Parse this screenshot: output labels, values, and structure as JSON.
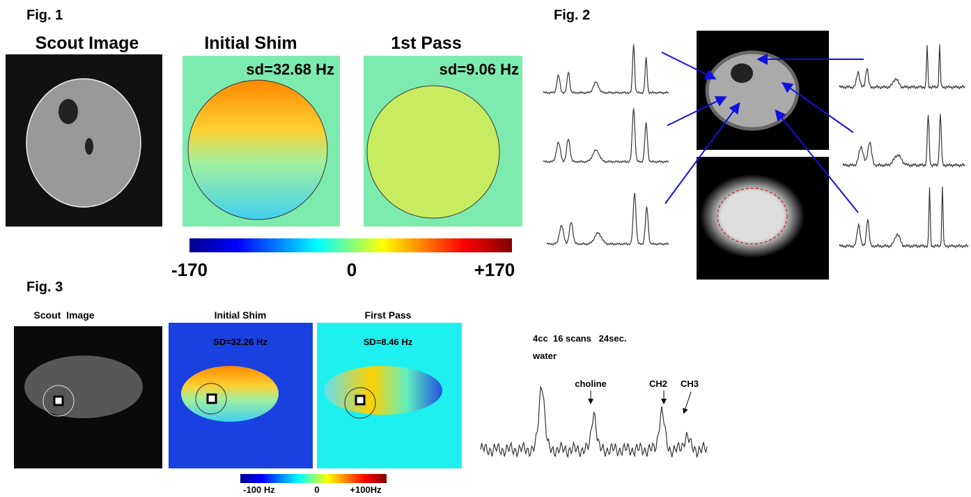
{
  "fig1": {
    "label": "Fig. 1",
    "panels": [
      "Scout Image",
      "Initial Shim",
      "1st Pass"
    ],
    "sd": [
      "sd=32.68 Hz",
      "sd=9.06 Hz"
    ],
    "colorbar": [
      "-170",
      "0",
      "+170"
    ]
  },
  "fig2": {
    "label": "Fig. 2"
  },
  "fig3": {
    "label": "Fig. 3",
    "panels": [
      "Scout  Image",
      "Initial Shim",
      "First Pass"
    ],
    "sd": [
      "SD=32.26 Hz",
      "SD=8.46 Hz"
    ],
    "colorbar": [
      "-100 Hz",
      "0",
      "+100Hz"
    ],
    "spectrum": {
      "header": "4cc  16 scans   24sec.",
      "peaks": [
        "water",
        "choline",
        "CH2",
        "CH3"
      ]
    }
  }
}
